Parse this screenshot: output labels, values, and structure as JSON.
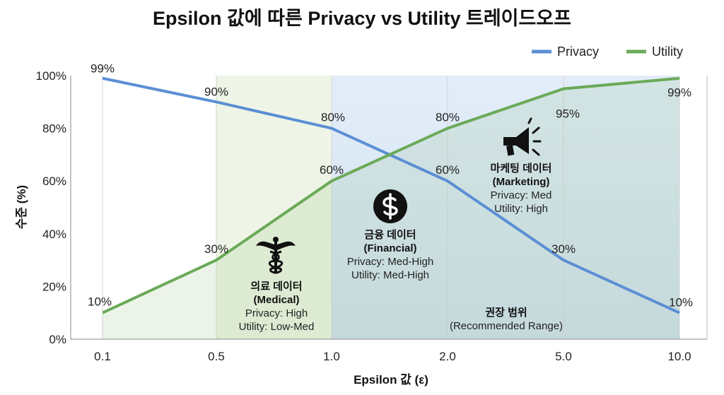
{
  "chart_data": {
    "type": "line",
    "title": "Epsilon 값에 따른 Privacy vs Utility 트레이드오프",
    "xlabel": "Epsilon 값 (ε)",
    "ylabel": "수준 (%)",
    "categories": [
      "0.1",
      "0.5",
      "1.0",
      "2.0",
      "5.0",
      "10.0"
    ],
    "series": [
      {
        "name": "Privacy",
        "color": "#5b8fd4",
        "values": [
          99,
          90,
          80,
          60,
          30,
          10
        ],
        "labels": [
          "99%",
          "90%",
          "80%",
          "60%",
          "30%",
          "10%"
        ]
      },
      {
        "name": "Utility",
        "color": "#6aaa58",
        "values": [
          10,
          30,
          60,
          80,
          95,
          99
        ],
        "labels": [
          "10%",
          "30%",
          "60%",
          "80%",
          "95%",
          "99%"
        ]
      }
    ],
    "ylim": [
      0,
      100
    ],
    "yticks": [
      "0%",
      "20%",
      "40%",
      "60%",
      "80%",
      "100%"
    ],
    "ytick_values": [
      0,
      20,
      40,
      60,
      80,
      100
    ],
    "grid": "vertical",
    "legend": "top-right",
    "regions": [
      {
        "name": "medical",
        "from_index": 1,
        "to_index": 2,
        "color": "#eef5e6"
      },
      {
        "name": "recommended",
        "from_index": 2,
        "to_index": 5,
        "color": "#e4edf8"
      }
    ],
    "annotations": {
      "medical": {
        "icon": "caduceus-icon",
        "lines": [
          "의료 데이터",
          "(Medical)",
          "Privacy: High",
          "Utility: Low-Med"
        ]
      },
      "financial": {
        "icon": "dollar-icon",
        "lines": [
          "금융 데이터",
          "(Financial)",
          "Privacy: Med-High",
          "Utility: Med-High"
        ]
      },
      "marketing": {
        "icon": "megaphone-icon",
        "lines": [
          "마케팅 데이터",
          "(Marketing)",
          "Privacy: Med",
          "Utility: High"
        ]
      },
      "recommended": {
        "lines": [
          "권장 범위",
          "(Recommended Range)"
        ]
      }
    }
  }
}
